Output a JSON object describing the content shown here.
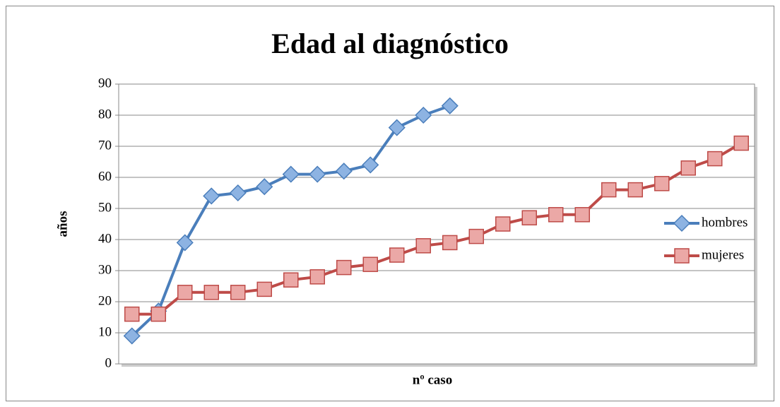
{
  "chart_data": {
    "type": "line",
    "title": "Edad al diagnóstico",
    "x_label": "nº caso",
    "y_label": "años",
    "categories": [
      null,
      null,
      null,
      null,
      null,
      null,
      null,
      null,
      null,
      null,
      null,
      null,
      null,
      null,
      null,
      null,
      null,
      null,
      null,
      null,
      null,
      null,
      null,
      null
    ],
    "series": [
      {
        "name": "hombres",
        "color": "#4a7ebb",
        "marker": "diamond",
        "marker_fill": "#8db3e2",
        "values": [
          9,
          17,
          39,
          54,
          55,
          57,
          61,
          61,
          62,
          64,
          76,
          80,
          83,
          null,
          null,
          null,
          null,
          null,
          null,
          null,
          null,
          null,
          null,
          null
        ]
      },
      {
        "name": "mujeres",
        "color": "#be4b48",
        "marker": "square",
        "marker_fill": "#eba8a6",
        "values": [
          16,
          16,
          23,
          23,
          23,
          24,
          27,
          28,
          31,
          32,
          35,
          38,
          39,
          41,
          45,
          47,
          48,
          48,
          56,
          56,
          58,
          63,
          66,
          71
        ]
      }
    ],
    "ylim": [
      0,
      90
    ],
    "yticks": [
      0,
      10,
      20,
      30,
      40,
      50,
      60,
      70,
      80,
      90
    ],
    "grid": true,
    "legend": "right"
  }
}
